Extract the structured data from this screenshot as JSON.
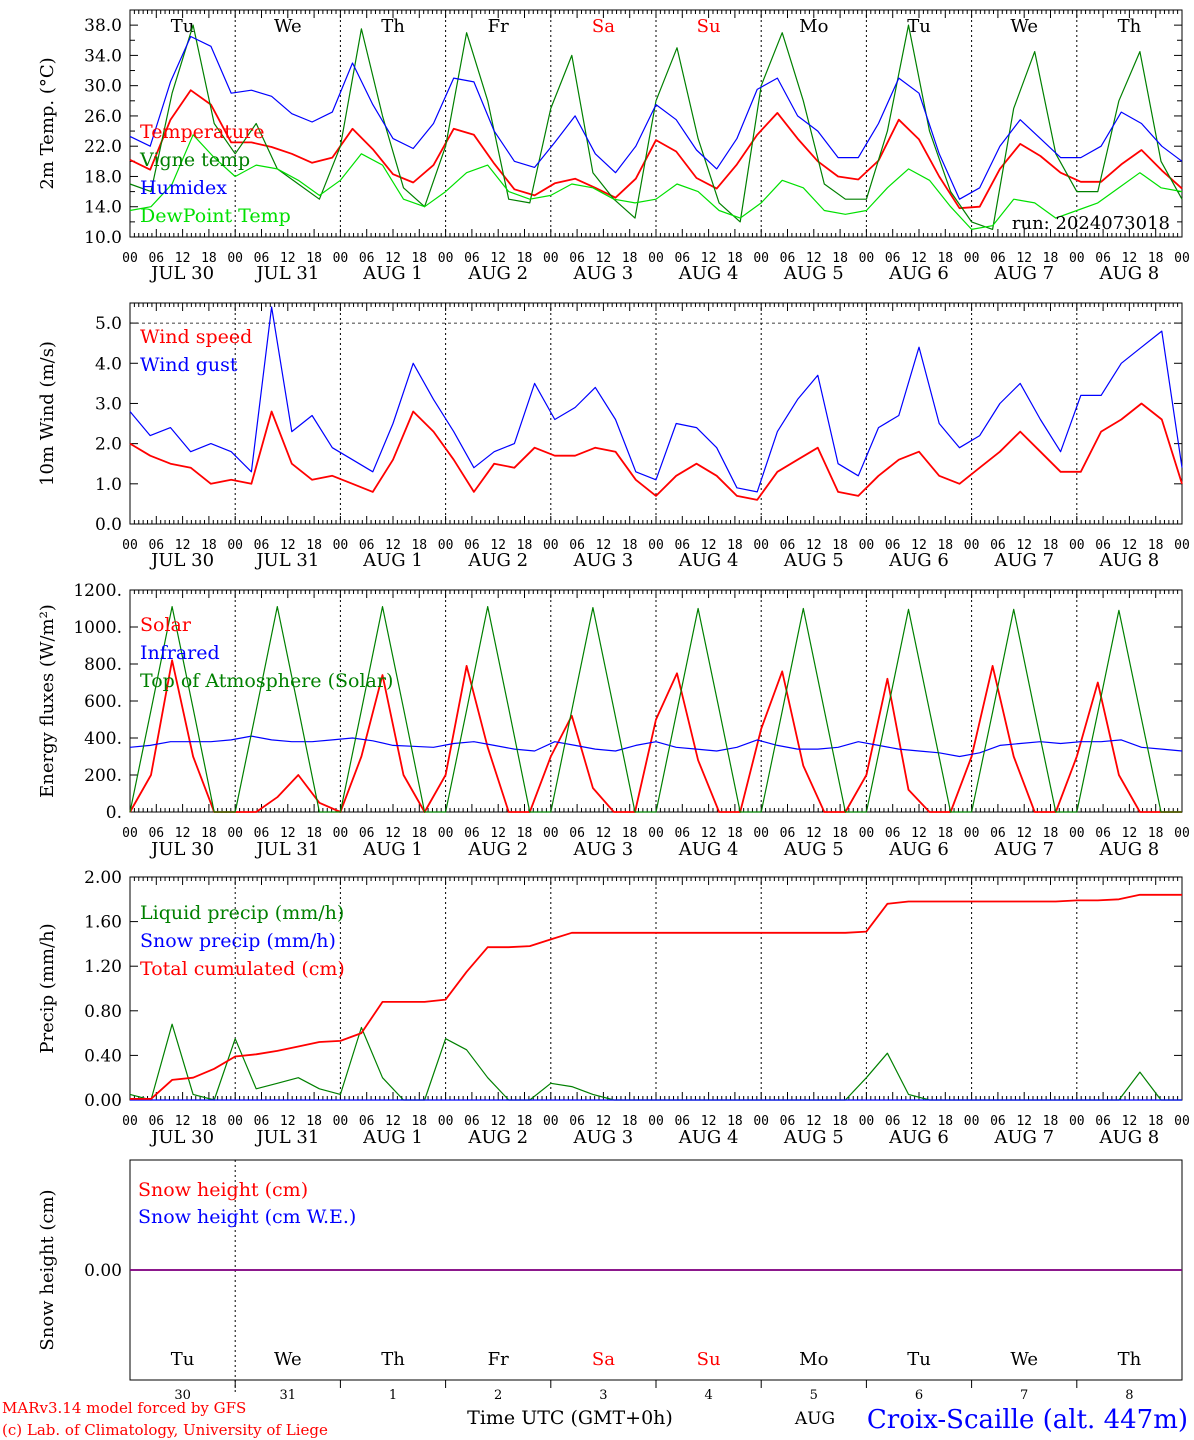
{
  "days": {
    "weekday": [
      "Tu",
      "We",
      "Th",
      "Fr",
      "Sa",
      "Su",
      "Mo",
      "Tu",
      "We",
      "Th"
    ],
    "weekend_flags": [
      false,
      false,
      false,
      false,
      true,
      true,
      false,
      false,
      false,
      false
    ],
    "date_labels": [
      "JUL 30",
      "JUL 31",
      "AUG  1",
      "AUG  2",
      "AUG  3",
      "AUG  4",
      "AUG  5",
      "AUG  6",
      "AUG  7",
      "AUG  8"
    ],
    "day_numbers": [
      "30",
      "31",
      "1",
      "2",
      "3",
      "4",
      "5",
      "6",
      "7",
      "8"
    ],
    "hour_ticks": [
      "00",
      "06",
      "12",
      "18"
    ],
    "final_tick": "00"
  },
  "colors": {
    "red": "#ff0000",
    "green": "#008000",
    "blue": "#0000ff",
    "lightgreen": "#00e000",
    "purple": "#800080",
    "grid": "#000000"
  },
  "footer": {
    "model": "MARv3.14 model forced by GFS",
    "copyright": "(c) Lab. of Climatology, University of Liege",
    "xlabel": "Time UTC (GMT+0h)",
    "month": "AUG",
    "station": "Croix-Scaille (alt. 447m)"
  },
  "chart_data": [
    {
      "type": "line",
      "id": "temp",
      "ylabel": "2m Temp. (°C)",
      "ylim": [
        10.0,
        40.0
      ],
      "yticks": [
        "10.0",
        "14.0",
        "18.0",
        "22.0",
        "26.0",
        "30.0",
        "34.0",
        "38.0"
      ],
      "annotation": "run: 2024073018",
      "x_hours_step": 6,
      "series": [
        {
          "name": "Temperature",
          "color": "red",
          "values": [
            20.2,
            18.9,
            25.5,
            29.4,
            27.5,
            22.5,
            22.5,
            21.9,
            21.0,
            19.8,
            20.5,
            24.3,
            21.6,
            18.3,
            17.2,
            19.5,
            24.3,
            23.5,
            19.7,
            16.3,
            15.5,
            17.1,
            17.7,
            16.5,
            15.2,
            17.7,
            22.8,
            21.3,
            17.8,
            16.4,
            19.6,
            23.5,
            26.4,
            23.0,
            20.0,
            18.0,
            17.6,
            20.1,
            25.5,
            22.9,
            18.0,
            13.8,
            14.0,
            19.0,
            22.3,
            20.7,
            18.5,
            17.3,
            17.3,
            19.6,
            21.5,
            18.8,
            16.4
          ]
        },
        {
          "name": "Vigne temp",
          "color": "green",
          "values": [
            17.0,
            16.0,
            29.0,
            38.0,
            25.0,
            21.0,
            25.0,
            19.0,
            17.0,
            15.0,
            22.0,
            37.5,
            26.0,
            16.5,
            14.0,
            22.0,
            37.0,
            28.0,
            15.0,
            14.5,
            27.0,
            34.0,
            18.5,
            15.0,
            12.5,
            28.0,
            35.0,
            23.0,
            14.5,
            12.0,
            30.0,
            37.0,
            28.0,
            17.0,
            15.0,
            15.0,
            24.0,
            38.0,
            24.0,
            16.0,
            12.0,
            11.0,
            27.0,
            34.5,
            21.0,
            16.0,
            16.0,
            28.0,
            34.5,
            20.0,
            15.0
          ]
        },
        {
          "name": "Humidex",
          "color": "blue",
          "values": [
            23.3,
            22.0,
            30.5,
            36.5,
            35.2,
            29.0,
            29.4,
            28.6,
            26.3,
            25.2,
            26.5,
            33.0,
            27.5,
            23.0,
            21.7,
            25.0,
            31.0,
            30.5,
            24.0,
            20.0,
            19.2,
            22.5,
            26.0,
            21.0,
            18.5,
            22.0,
            27.5,
            25.5,
            21.5,
            19.0,
            23.0,
            29.5,
            31.0,
            26.0,
            24.0,
            20.5,
            20.5,
            25.0,
            31.0,
            29.0,
            21.0,
            15.0,
            16.5,
            22.0,
            25.5,
            23.0,
            20.5,
            20.5,
            22.0,
            26.5,
            25.0,
            22.0,
            20.0
          ]
        },
        {
          "name": "DewPoint Temp",
          "color": "lightgreen",
          "values": [
            13.5,
            14.0,
            17.0,
            23.5,
            20.5,
            18.0,
            19.5,
            19.0,
            17.5,
            15.5,
            17.5,
            21.0,
            19.5,
            15.0,
            14.0,
            16.0,
            18.5,
            19.5,
            16.0,
            15.0,
            15.5,
            17.0,
            16.5,
            15.0,
            14.5,
            15.0,
            17.0,
            16.0,
            13.5,
            12.5,
            14.5,
            17.5,
            16.5,
            13.5,
            13.0,
            13.5,
            16.5,
            19.0,
            17.5,
            14.0,
            11.0,
            11.5,
            15.0,
            14.5,
            12.5,
            13.5,
            14.5,
            16.5,
            18.5,
            16.5,
            16.0
          ]
        }
      ]
    },
    {
      "type": "line",
      "id": "wind",
      "ylabel": "10m Wind (m/s)",
      "ylim": [
        0.0,
        5.5
      ],
      "yticks": [
        "0.0",
        "1.0",
        "2.0",
        "3.0",
        "4.0",
        "5.0"
      ],
      "x_hours_step": 6,
      "series": [
        {
          "name": "Wind speed",
          "color": "red",
          "values": [
            2.0,
            1.7,
            1.5,
            1.4,
            1.0,
            1.1,
            1.0,
            2.8,
            1.5,
            1.1,
            1.2,
            1.0,
            0.8,
            1.6,
            2.8,
            2.3,
            1.6,
            0.8,
            1.5,
            1.4,
            1.9,
            1.7,
            1.7,
            1.9,
            1.8,
            1.1,
            0.7,
            1.2,
            1.5,
            1.2,
            0.7,
            0.6,
            1.3,
            1.6,
            1.9,
            0.8,
            0.7,
            1.2,
            1.6,
            1.8,
            1.2,
            1.0,
            1.4,
            1.8,
            2.3,
            1.8,
            1.3,
            1.3,
            2.3,
            2.6,
            3.0,
            2.6,
            1.0
          ]
        },
        {
          "name": "Wind gust",
          "color": "blue",
          "values": [
            2.8,
            2.2,
            2.4,
            1.8,
            2.0,
            1.8,
            1.3,
            5.4,
            2.3,
            2.7,
            1.9,
            1.6,
            1.3,
            2.5,
            4.0,
            3.1,
            2.3,
            1.4,
            1.8,
            2.0,
            3.5,
            2.6,
            2.9,
            3.4,
            2.6,
            1.3,
            1.1,
            2.5,
            2.4,
            1.9,
            0.9,
            0.8,
            2.3,
            3.1,
            3.7,
            1.5,
            1.2,
            2.4,
            2.7,
            4.4,
            2.5,
            1.9,
            2.2,
            3.0,
            3.5,
            2.6,
            1.8,
            3.2,
            3.2,
            4.0,
            4.4,
            4.8,
            1.4
          ]
        }
      ]
    },
    {
      "type": "line",
      "id": "energy",
      "ylabel": "Energy fluxes (W/m²)",
      "ylim": [
        0,
        1200
      ],
      "yticks": [
        "0.",
        "200.",
        "400.",
        "600.",
        "800.",
        "1000.",
        "1200."
      ],
      "x_hours_step": 6,
      "series": [
        {
          "name": "Solar",
          "color": "red",
          "values": [
            0,
            200,
            820,
            300,
            0,
            0,
            0,
            80,
            200,
            50,
            0,
            300,
            740,
            200,
            0,
            200,
            790,
            350,
            0,
            0,
            300,
            520,
            130,
            0,
            0,
            500,
            750,
            280,
            0,
            0,
            450,
            760,
            250,
            0,
            0,
            200,
            720,
            120,
            0,
            0,
            300,
            790,
            300,
            0,
            0,
            300,
            700,
            200,
            0,
            0,
            0
          ]
        },
        {
          "name": "Infrared",
          "color": "blue",
          "values": [
            350,
            360,
            380,
            380,
            380,
            390,
            410,
            390,
            380,
            380,
            390,
            400,
            385,
            360,
            355,
            350,
            370,
            380,
            360,
            340,
            330,
            380,
            360,
            340,
            330,
            360,
            380,
            350,
            340,
            330,
            350,
            390,
            360,
            340,
            340,
            350,
            380,
            360,
            340,
            330,
            320,
            300,
            320,
            360,
            370,
            380,
            370,
            380,
            380,
            390,
            350,
            340,
            330
          ]
        },
        {
          "name": "Top of Atmosphere (Solar)",
          "color": "green",
          "values": [
            0,
            550,
            1110,
            560,
            0,
            0,
            550,
            1110,
            560,
            0,
            0,
            550,
            1110,
            560,
            0,
            0,
            550,
            1110,
            560,
            0,
            0,
            550,
            1105,
            555,
            0,
            0,
            548,
            1100,
            555,
            0,
            0,
            545,
            1100,
            550,
            0,
            0,
            543,
            1095,
            548,
            0,
            0,
            540,
            1095,
            545,
            0,
            0,
            538,
            1090,
            545,
            0,
            0
          ]
        }
      ]
    },
    {
      "type": "line",
      "id": "precip",
      "ylabel": "Precip (mm/h)",
      "ylim": [
        0.0,
        2.0
      ],
      "yticks": [
        "0.00",
        "0.40",
        "0.80",
        "1.20",
        "1.60",
        "2.00"
      ],
      "x_hours_step": 6,
      "series": [
        {
          "name": "Liquid precip (mm/h)",
          "color": "green",
          "values": [
            0.05,
            0.0,
            0.68,
            0.05,
            0.0,
            0.55,
            0.1,
            0.15,
            0.2,
            0.1,
            0.05,
            0.65,
            0.2,
            0.0,
            0.0,
            0.55,
            0.45,
            0.2,
            0.0,
            0.0,
            0.15,
            0.12,
            0.05,
            0.0,
            0.0,
            0.0,
            0.0,
            0.0,
            0.0,
            0.0,
            0.0,
            0.0,
            0.0,
            0.0,
            0.0,
            0.2,
            0.42,
            0.05,
            0.0,
            0.0,
            0.0,
            0.0,
            0.0,
            0.0,
            0.0,
            0.0,
            0.0,
            0.0,
            0.25,
            0.0,
            0.0
          ]
        },
        {
          "name": "Snow precip (mm/h)",
          "color": "blue",
          "values": [
            0,
            0,
            0,
            0,
            0,
            0,
            0,
            0,
            0,
            0,
            0,
            0,
            0,
            0,
            0,
            0,
            0,
            0,
            0,
            0,
            0,
            0,
            0,
            0,
            0,
            0,
            0,
            0,
            0,
            0,
            0,
            0,
            0,
            0,
            0,
            0,
            0,
            0,
            0,
            0,
            0,
            0,
            0,
            0,
            0,
            0,
            0,
            0,
            0,
            0,
            0
          ]
        },
        {
          "name": "Total cumulated (cm)",
          "color": "red",
          "values": [
            0.01,
            0.01,
            0.18,
            0.2,
            0.28,
            0.39,
            0.41,
            0.44,
            0.48,
            0.52,
            0.53,
            0.6,
            0.88,
            0.88,
            0.88,
            0.9,
            1.15,
            1.37,
            1.37,
            1.38,
            1.44,
            1.5,
            1.5,
            1.5,
            1.5,
            1.5,
            1.5,
            1.5,
            1.5,
            1.5,
            1.5,
            1.5,
            1.5,
            1.5,
            1.5,
            1.51,
            1.76,
            1.78,
            1.78,
            1.78,
            1.78,
            1.78,
            1.78,
            1.78,
            1.78,
            1.79,
            1.79,
            1.8,
            1.84,
            1.84,
            1.84
          ]
        }
      ]
    },
    {
      "type": "line",
      "id": "snow",
      "ylabel": "Snow height (cm)",
      "ylim": [
        -1.0,
        1.0
      ],
      "yticks": [
        "0.00"
      ],
      "series": [
        {
          "name": "Snow height (cm)",
          "color": "red",
          "values": [
            0.0,
            0.0
          ]
        },
        {
          "name": "Snow height (cm W.E.)",
          "color": "blue",
          "values": [
            0.0,
            0.0
          ]
        }
      ]
    }
  ]
}
